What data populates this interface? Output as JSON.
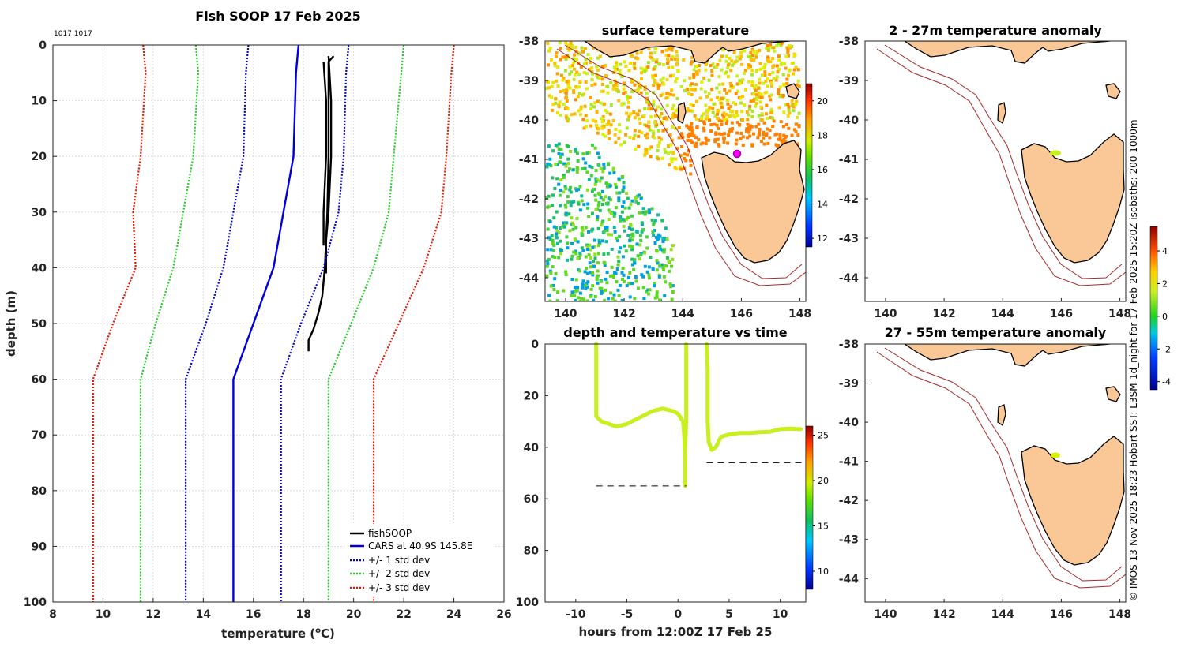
{
  "figure_ids": "1017 1017",
  "side_note": "© IMOS 13-Nov-2025 18:23 Hobart SST: L3SM-1d_night for 17-Feb-2025 15:20Z isobaths: 200  1000m",
  "colors": {
    "land": "#f9c896",
    "isobath": "#a52a2a",
    "observed": "#000000",
    "cars": "#0000dd",
    "std1": "#0000dd",
    "std2": "#22cc22",
    "std3": "#ee1100",
    "trace": "#c8f020"
  },
  "chart_data": [
    {
      "id": "profile",
      "type": "line",
      "title": "Fish SOOP 17 Feb 2025",
      "xlabel": "temperature (",
      "xlabel_sup": "o",
      "xlabel_end": "C)",
      "ylabel": "depth (m)",
      "xlim": [
        8,
        26
      ],
      "ylim": [
        0,
        100
      ],
      "xticks": [
        "8",
        "10",
        "12",
        "14",
        "16",
        "18",
        "20",
        "22",
        "24",
        "26"
      ],
      "yticks": [
        "0",
        "10",
        "20",
        "30",
        "40",
        "50",
        "60",
        "70",
        "80",
        "90",
        "100"
      ],
      "grid": true,
      "legend_position": "bottom-right",
      "series": [
        {
          "name": "fishSOOP",
          "style": "solid",
          "color": "#000000",
          "points": [
            [
              19.2,
              2
            ],
            [
              19.0,
              3
            ],
            [
              19.0,
              10
            ],
            [
              19.0,
              20
            ],
            [
              18.95,
              30
            ],
            [
              18.9,
              35
            ],
            [
              18.85,
              40
            ],
            [
              18.75,
              45
            ],
            [
              18.6,
              48
            ],
            [
              18.4,
              51
            ],
            [
              18.2,
              53
            ],
            [
              18.2,
              55
            ]
          ]
        },
        {
          "name": "fishSOOP",
          "style": "solid",
          "color": "#000000",
          "points": [
            [
              19.0,
              2
            ],
            [
              19.1,
              10
            ],
            [
              19.1,
              20
            ],
            [
              19.0,
              30
            ],
            [
              18.9,
              35
            ],
            [
              18.9,
              41
            ]
          ]
        },
        {
          "name": "fishSOOP",
          "style": "solid",
          "color": "#000000",
          "points": [
            [
              18.8,
              3
            ],
            [
              18.9,
              10
            ],
            [
              18.9,
              20
            ],
            [
              18.8,
              30
            ],
            [
              18.8,
              36
            ]
          ]
        },
        {
          "name": "CARS at 40.9S 145.8E",
          "style": "solid",
          "color": "#0000dd",
          "points": [
            [
              17.8,
              0
            ],
            [
              17.7,
              5
            ],
            [
              17.6,
              20
            ],
            [
              17.2,
              30
            ],
            [
              16.8,
              40
            ],
            [
              16.0,
              50
            ],
            [
              15.2,
              60
            ],
            [
              15.2,
              100
            ]
          ]
        },
        {
          "name": "+/- 1 std dev",
          "style": "dotted",
          "color": "#0000dd",
          "points": [
            [
              15.8,
              0
            ],
            [
              15.7,
              5
            ],
            [
              15.6,
              20
            ],
            [
              15.2,
              30
            ],
            [
              14.8,
              40
            ],
            [
              14.1,
              50
            ],
            [
              13.3,
              60
            ],
            [
              13.3,
              100
            ]
          ]
        },
        {
          "name": "+/- 1 std dev",
          "style": "dotted",
          "color": "#0000dd",
          "points": [
            [
              19.8,
              0
            ],
            [
              19.7,
              5
            ],
            [
              19.6,
              20
            ],
            [
              19.4,
              30
            ],
            [
              18.8,
              40
            ],
            [
              17.9,
              50
            ],
            [
              17.1,
              60
            ],
            [
              17.1,
              100
            ]
          ]
        },
        {
          "name": "+/- 2 std dev",
          "style": "dotted",
          "color": "#22cc22",
          "points": [
            [
              13.7,
              0
            ],
            [
              13.8,
              5
            ],
            [
              13.6,
              20
            ],
            [
              13.2,
              30
            ],
            [
              12.8,
              40
            ],
            [
              12.1,
              50
            ],
            [
              11.5,
              60
            ],
            [
              11.5,
              100
            ]
          ]
        },
        {
          "name": "+/- 2 std dev",
          "style": "dotted",
          "color": "#22cc22",
          "points": [
            [
              22.0,
              0
            ],
            [
              21.9,
              5
            ],
            [
              21.6,
              20
            ],
            [
              21.4,
              30
            ],
            [
              20.8,
              40
            ],
            [
              19.9,
              50
            ],
            [
              19.0,
              60
            ],
            [
              19.0,
              100
            ]
          ]
        },
        {
          "name": "+/- 3 std dev",
          "style": "dotted",
          "color": "#ee1100",
          "points": [
            [
              11.6,
              0
            ],
            [
              11.7,
              5
            ],
            [
              11.5,
              20
            ],
            [
              11.2,
              30
            ],
            [
              11.3,
              40
            ],
            [
              10.4,
              50
            ],
            [
              9.6,
              60
            ],
            [
              9.6,
              100
            ]
          ]
        },
        {
          "name": "+/- 3 std dev",
          "style": "dotted",
          "color": "#ee1100",
          "points": [
            [
              24.0,
              0
            ],
            [
              23.9,
              5
            ],
            [
              23.7,
              20
            ],
            [
              23.5,
              30
            ],
            [
              22.8,
              40
            ],
            [
              21.8,
              50
            ],
            [
              20.8,
              60
            ],
            [
              20.8,
              100
            ]
          ]
        }
      ],
      "legend": [
        {
          "label": "fishSOOP",
          "color": "#000000",
          "style": "solid"
        },
        {
          "label": "CARS at 40.9S 145.8E",
          "color": "#0000dd",
          "style": "solid"
        },
        {
          "label": "+/- 1 std dev",
          "color": "#0000dd",
          "style": "dotted"
        },
        {
          "label": "+/- 2 std dev",
          "color": "#22cc22",
          "style": "dotted"
        },
        {
          "label": "+/- 3 std dev",
          "color": "#ee1100",
          "style": "dotted"
        }
      ]
    },
    {
      "id": "sst_map",
      "type": "heatmap",
      "title": "surface temperature",
      "xlim": [
        139.3,
        148.2
      ],
      "ylim": [
        -44.6,
        -38
      ],
      "xticks": [
        "140",
        "142",
        "144",
        "146",
        "148"
      ],
      "yticks": [
        "-38",
        "-39",
        "-40",
        "-41",
        "-42",
        "-43",
        "-44"
      ],
      "colorbar": {
        "min": 11.5,
        "max": 21,
        "ticks": [
          "12",
          "14",
          "16",
          "18",
          "20"
        ]
      },
      "marker": {
        "lon": 145.8,
        "lat": -40.9
      }
    },
    {
      "id": "depth_time",
      "type": "scatter",
      "title": "depth and temperature vs time",
      "xlabel": "hours from 12:00Z 17 Feb 25",
      "xlim": [
        -13,
        12.5
      ],
      "ylim": [
        0,
        100
      ],
      "xticks": [
        "-10",
        "-5",
        "0",
        "5",
        "10"
      ],
      "yticks": [
        "0",
        "20",
        "40",
        "60",
        "80",
        "100"
      ],
      "colorbar": {
        "min": 8,
        "max": 26,
        "ticks": [
          "10",
          "15",
          "20",
          "25"
        ]
      },
      "segments": [
        {
          "color": "#c8f020",
          "points": [
            [
              -8,
              0
            ],
            [
              -8,
              28
            ],
            [
              -7.5,
              30
            ],
            [
              -6,
              32
            ],
            [
              -5,
              31
            ],
            [
              -4,
              29
            ],
            [
              -2.5,
              26
            ],
            [
              -1.5,
              25
            ],
            [
              -0.5,
              26
            ],
            [
              0,
              27
            ],
            [
              0.5,
              30
            ],
            [
              0.6,
              35
            ],
            [
              0.7,
              45
            ],
            [
              0.7,
              55
            ],
            [
              0.7,
              40
            ],
            [
              0.8,
              30
            ],
            [
              0.8,
              20
            ],
            [
              0.8,
              0
            ]
          ]
        },
        {
          "color": "#c8f020",
          "points": [
            [
              2.8,
              0
            ],
            [
              2.9,
              10
            ],
            [
              2.9,
              30
            ],
            [
              3.0,
              38
            ],
            [
              3.3,
              41
            ],
            [
              3.7,
              40
            ],
            [
              4.2,
              36
            ],
            [
              5,
              35
            ],
            [
              6,
              34.5
            ],
            [
              7,
              34.5
            ],
            [
              8,
              34.2
            ],
            [
              9,
              34
            ],
            [
              10,
              33
            ],
            [
              11,
              32.8
            ],
            [
              12,
              33
            ]
          ]
        }
      ],
      "reference_lines": [
        {
          "x0": -8,
          "x1": 0.8,
          "depth": 55
        },
        {
          "x0": 2.8,
          "x1": 12.5,
          "depth": 46
        }
      ]
    },
    {
      "id": "anom_2_27",
      "type": "heatmap",
      "title": "2 - 27m temperature anomaly",
      "xlim": [
        139.3,
        148.2
      ],
      "ylim": [
        -44.6,
        -38
      ],
      "xticks": [
        "140",
        "142",
        "144",
        "146",
        "148"
      ],
      "yticks": [
        "-38",
        "-39",
        "-40",
        "-41",
        "-42",
        "-43",
        "-44"
      ],
      "marker": {
        "lon": 145.8,
        "lat": -40.85,
        "color": "#c8f020"
      }
    },
    {
      "id": "anom_27_55",
      "type": "heatmap",
      "title": "27 - 55m temperature anomaly",
      "xlim": [
        139.3,
        148.2
      ],
      "ylim": [
        -44.6,
        -38
      ],
      "xticks": [
        "140",
        "142",
        "144",
        "146",
        "148"
      ],
      "yticks": [
        "-38",
        "-39",
        "-40",
        "-41",
        "-42",
        "-43",
        "-44"
      ],
      "marker": {
        "lon": 145.8,
        "lat": -40.85,
        "color": "#d8f000"
      }
    },
    {
      "id": "anomaly_colorbar",
      "type": "heatmap",
      "title": "",
      "colorbar": {
        "min": -4.5,
        "max": 5.5,
        "ticks": [
          "4",
          "2",
          "0",
          "-2",
          "-4"
        ],
        "values": [
          4,
          2,
          0,
          -2,
          -4
        ]
      }
    }
  ]
}
